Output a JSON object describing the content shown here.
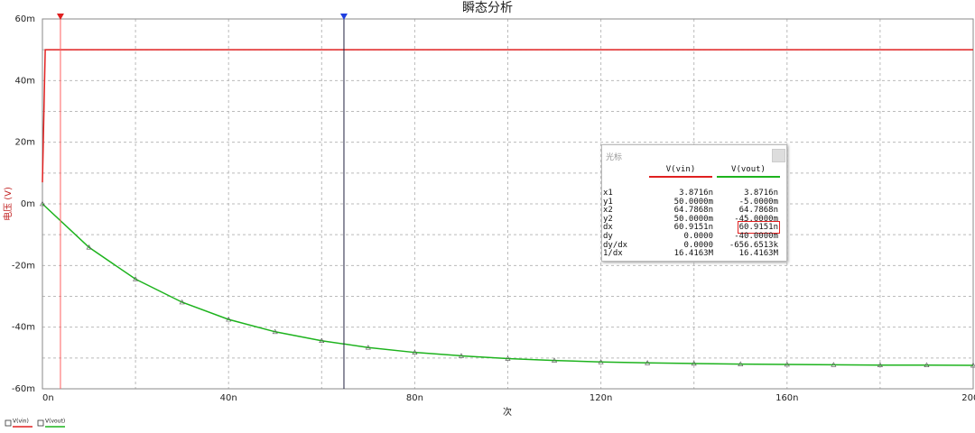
{
  "chart_data": {
    "type": "line",
    "title": "瞬态分析",
    "xlabel": "次",
    "ylabel": "电压 (V)",
    "xlim": [
      0,
      200
    ],
    "ylim": [
      -60,
      60
    ],
    "xticks": [
      {
        "value": 0,
        "label": "0n"
      },
      {
        "value": 40,
        "label": "40n"
      },
      {
        "value": 80,
        "label": "80n"
      },
      {
        "value": 120,
        "label": "120n"
      },
      {
        "value": 160,
        "label": "160n"
      },
      {
        "value": 200,
        "label": "200n"
      }
    ],
    "yticks": [
      {
        "value": -60,
        "label": "-60m"
      },
      {
        "value": -40,
        "label": "-40m"
      },
      {
        "value": -20,
        "label": "-20m"
      },
      {
        "value": 0,
        "label": "0m"
      },
      {
        "value": 20,
        "label": "20m"
      },
      {
        "value": 40,
        "label": "40m"
      },
      {
        "value": 60,
        "label": "60m"
      }
    ],
    "grid": true,
    "series": [
      {
        "name": "V(vin)",
        "color": "#e02020",
        "x": [
          0,
          0.6,
          200
        ],
        "values": [
          7,
          50,
          50
        ]
      },
      {
        "name": "V(vout)",
        "color": "#1db31d",
        "x": [
          0,
          10,
          20,
          30,
          40,
          50,
          60,
          70,
          80,
          90,
          100,
          110,
          120,
          130,
          140,
          150,
          160,
          170,
          180,
          190,
          200
        ],
        "values": [
          0,
          -14.1,
          -24.4,
          -31.9,
          -37.5,
          -41.5,
          -44.4,
          -46.6,
          -48.2,
          -49.3,
          -50.2,
          -50.8,
          -51.3,
          -51.6,
          -51.8,
          -52.0,
          -52.1,
          -52.2,
          -52.3,
          -52.3,
          -52.4
        ]
      }
    ],
    "cursors": [
      {
        "x": 3.8716,
        "color": "#ff6060",
        "marker_color": "#e02020"
      },
      {
        "x": 64.7868,
        "color": "#202040",
        "marker_color": "#2040e0"
      }
    ]
  },
  "cursor_panel": {
    "title": "光标",
    "headers": [
      "V(vin)",
      "V(vout)"
    ],
    "rows": [
      [
        "x1",
        "3.8716n",
        "3.8716n"
      ],
      [
        "y1",
        "50.0000m",
        "-5.0000m"
      ],
      [
        "x2",
        "64.7868n",
        "64.7868n"
      ],
      [
        "y2",
        "50.0000m",
        "-45.0000m"
      ],
      [
        "dx",
        "60.9151n",
        "60.9151n"
      ],
      [
        "dy",
        "0.0000",
        "-40.0000m"
      ],
      [
        "dy/dx",
        "0.0000",
        "-656.6513k"
      ],
      [
        "1/dx",
        "16.4163M",
        "16.4163M"
      ]
    ]
  }
}
